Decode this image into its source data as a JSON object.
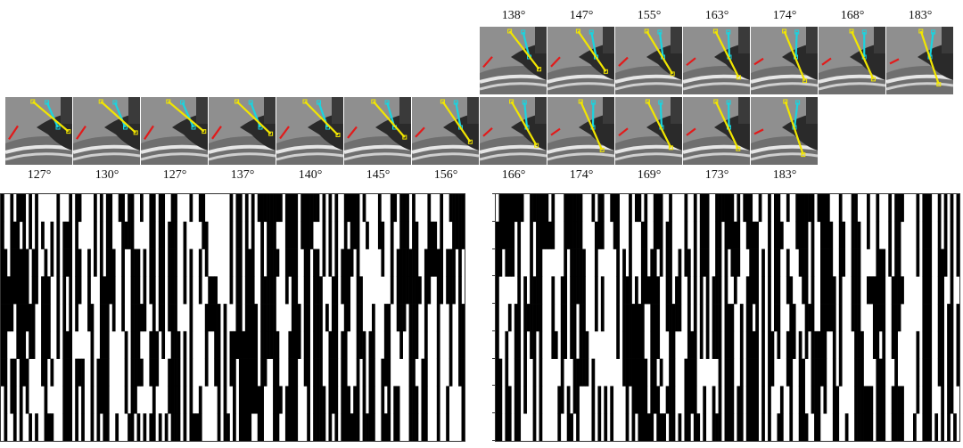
{
  "figure": {
    "top_row": {
      "angles": [
        "138°",
        "147°",
        "155°",
        "163°",
        "174°",
        "168°",
        "183°"
      ],
      "tilts": [
        0.55,
        0.45,
        0.35,
        0.2,
        0.05,
        0.12,
        -0.1
      ]
    },
    "bottom_row": {
      "angles": [
        "127°",
        "130°",
        "127°",
        "137°",
        "140°",
        "145°",
        "156°",
        "166°",
        "174°",
        "169°",
        "173°",
        "183°"
      ],
      "tilts": [
        0.9,
        0.85,
        0.9,
        0.8,
        0.75,
        0.65,
        0.45,
        0.3,
        0.1,
        0.2,
        0.15,
        -0.1
      ]
    },
    "colors": {
      "yellow": "#f2e600",
      "cyan": "#19d4e0",
      "red": "#e21a1a",
      "black": "#000000"
    },
    "barcode_left": {
      "seed": 17,
      "columns": 150,
      "rows": 9
    },
    "barcode_right": {
      "seed": 53,
      "columns": 150,
      "rows": 9
    }
  }
}
